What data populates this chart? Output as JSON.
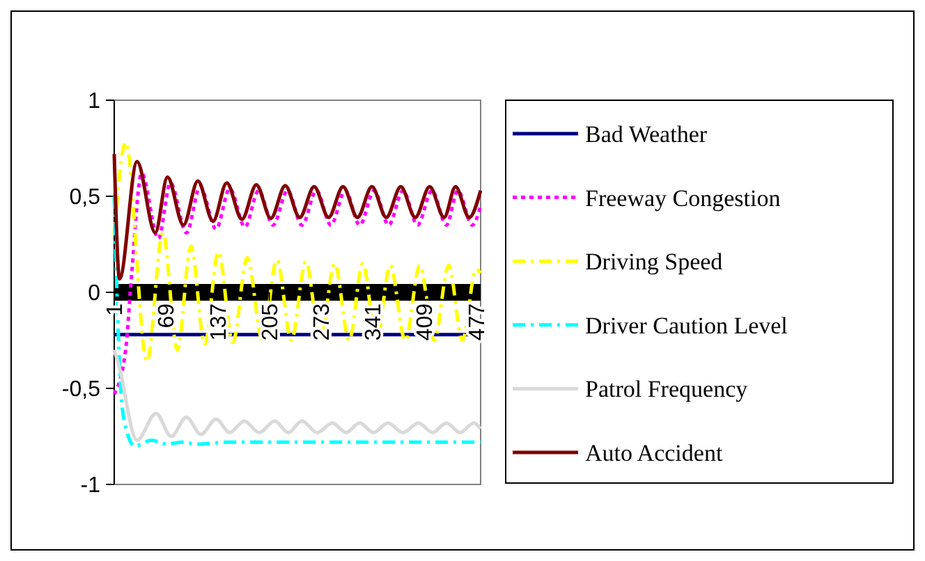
{
  "chart_data": {
    "type": "line",
    "xlim": [
      1,
      483
    ],
    "xticks": [
      1,
      69,
      137,
      205,
      273,
      341,
      409,
      477
    ],
    "ylim": [
      -1,
      1
    ],
    "yticks": [
      1,
      {
        "value": 0.5,
        "label": "0,5"
      },
      0,
      {
        "value": -0.5,
        "label": "-0,5"
      },
      -1
    ],
    "legend": "right",
    "grid": false,
    "series": [
      {
        "name": "Bad Weather",
        "color": "#000080",
        "line_style": "solid",
        "x": [
          1,
          483
        ],
        "values": [
          -0.22,
          -0.22
        ]
      },
      {
        "name": "Freeway Congestion",
        "color": "#ff00ff",
        "line_style": "dotted",
        "x": [
          1,
          16,
          24,
          37,
          59,
          75,
          96,
          114,
          135,
          153,
          173,
          191,
          210,
          229,
          248,
          267,
          286,
          305,
          324,
          343,
          362,
          381,
          400,
          419,
          438,
          453,
          472,
          483
        ],
        "values": [
          -0.53,
          -0.3,
          0.1,
          0.62,
          0.28,
          0.57,
          0.31,
          0.55,
          0.33,
          0.54,
          0.34,
          0.53,
          0.35,
          0.53,
          0.35,
          0.53,
          0.35,
          0.53,
          0.35,
          0.53,
          0.35,
          0.53,
          0.35,
          0.53,
          0.35,
          0.53,
          0.35,
          0.45
        ]
      },
      {
        "name": "Driving Speed",
        "color": "#ffff00",
        "line_style": "dashed",
        "x": [
          1,
          16,
          44,
          65,
          84,
          102,
          120,
          138,
          157,
          176,
          196,
          215,
          234,
          253,
          272,
          291,
          310,
          328,
          346,
          364,
          384,
          403,
          422,
          441,
          459,
          477,
          483
        ],
        "values": [
          0.3,
          0.78,
          -0.36,
          0.31,
          -0.3,
          0.24,
          -0.27,
          0.21,
          -0.26,
          0.18,
          -0.25,
          0.17,
          -0.25,
          0.16,
          -0.25,
          0.15,
          -0.25,
          0.15,
          -0.25,
          0.14,
          -0.25,
          0.14,
          -0.25,
          0.14,
          -0.25,
          0.12,
          0.1
        ]
      },
      {
        "name": "Driver Caution Level",
        "color": "#00ffff",
        "line_style": "dashed",
        "x": [
          1,
          10,
          16,
          28,
          50,
          70,
          90,
          110,
          150,
          200,
          250,
          300,
          350,
          400,
          450,
          483
        ],
        "values": [
          0.5,
          -0.53,
          -0.7,
          -0.8,
          -0.77,
          -0.79,
          -0.78,
          -0.79,
          -0.78,
          -0.78,
          -0.78,
          -0.78,
          -0.78,
          -0.78,
          -0.78,
          -0.78
        ]
      },
      {
        "name": "Patrol Frequency",
        "color": "#d9d9d9",
        "line_style": "solid",
        "x": [
          1,
          7,
          31,
          56,
          76,
          96,
          115,
          135,
          153,
          172,
          192,
          212,
          230,
          248,
          268,
          288,
          306,
          324,
          342,
          361,
          381,
          401,
          420,
          438,
          456,
          474,
          483
        ],
        "values": [
          -0.3,
          -0.38,
          -0.77,
          -0.63,
          -0.75,
          -0.65,
          -0.74,
          -0.66,
          -0.73,
          -0.67,
          -0.73,
          -0.67,
          -0.73,
          -0.67,
          -0.73,
          -0.68,
          -0.73,
          -0.68,
          -0.73,
          -0.68,
          -0.73,
          -0.68,
          -0.73,
          -0.68,
          -0.73,
          -0.68,
          -0.71
        ]
      },
      {
        "name": "Auto Accident",
        "color": "#800000",
        "line_style": "solid",
        "x": [
          1,
          8,
          31,
          55,
          71,
          92,
          111,
          131,
          149,
          169,
          188,
          207,
          226,
          245,
          264,
          283,
          302,
          321,
          340,
          359,
          378,
          397,
          416,
          435,
          450,
          468,
          483
        ],
        "values": [
          0.72,
          0.07,
          0.68,
          0.31,
          0.6,
          0.35,
          0.58,
          0.37,
          0.57,
          0.38,
          0.56,
          0.385,
          0.555,
          0.39,
          0.55,
          0.39,
          0.55,
          0.39,
          0.55,
          0.39,
          0.55,
          0.39,
          0.55,
          0.39,
          0.55,
          0.39,
          0.53
        ]
      }
    ]
  }
}
